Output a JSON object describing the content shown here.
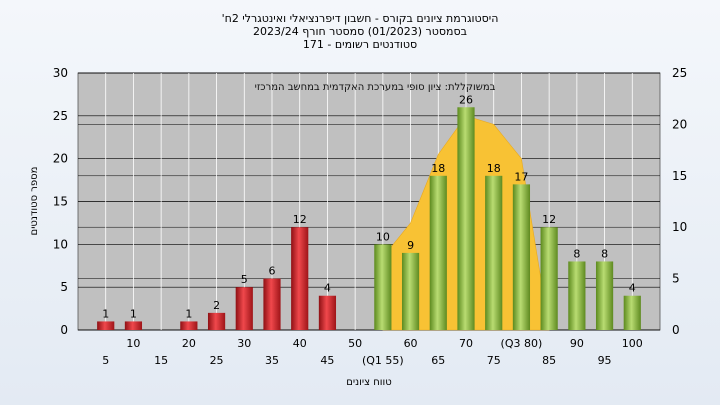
{
  "chart_data": {
    "type": "bar",
    "title": "היסטוגרמת ציונים בקורס - חשבון דיפרנציאלי ואינטגרלי 2ח'",
    "subtitle1": "בסמסטר  (01/2023)  סמסטר חורף 2023/24",
    "subtitle2": "סטודנטים רשומים - 171",
    "annotation": "במשוקללת: ציון סופי במערכת האקדמית במחשב המרכזי",
    "xlabel": "טווח ציונים",
    "ylabel": "מספר סטודנטים",
    "ylim": [
      0,
      30
    ],
    "y2lim": [
      0,
      25
    ],
    "yticks": [
      "0",
      "5",
      "10",
      "15",
      "20",
      "25",
      "30"
    ],
    "y2ticks": [
      "0",
      "5",
      "10",
      "15",
      "20",
      "25"
    ],
    "grid": true,
    "categories": [
      5,
      10,
      15,
      20,
      25,
      30,
      35,
      40,
      45,
      50,
      55,
      60,
      65,
      70,
      75,
      80,
      85,
      90,
      95,
      100
    ],
    "category_labels": [
      "5",
      "10",
      "15",
      "20",
      "25",
      "30",
      "35",
      "40",
      "45",
      "50",
      "(Q1 55)",
      "60",
      "65",
      "70",
      "75",
      "(Q3 80)",
      "85",
      "90",
      "95",
      "100"
    ],
    "series": [
      {
        "color": "#d9262b",
        "values": [
          1,
          1,
          0,
          1,
          2,
          5,
          6,
          12,
          4,
          0,
          null,
          null,
          null,
          null,
          null,
          null,
          null,
          null,
          null,
          null
        ],
        "labels": [
          "1",
          "1",
          "",
          "1",
          "2",
          "5",
          "6",
          "12",
          "4",
          "",
          "",
          "",
          "",
          "",
          "",
          "",
          "",
          "",
          "",
          ""
        ]
      },
      {
        "color": "#8dbb3e",
        "values": [
          null,
          null,
          null,
          null,
          null,
          null,
          null,
          null,
          null,
          null,
          10,
          9,
          18,
          26,
          18,
          17,
          12,
          8,
          8,
          4
        ],
        "labels": [
          "",
          "",
          "",
          "",
          "",
          "",
          "",
          "",
          "",
          "",
          "10",
          "9",
          "18",
          "26",
          "18",
          "17",
          "12",
          "8",
          "8",
          "4"
        ]
      }
    ],
    "iqr_area": {
      "color": "#f8c234",
      "x": [
        55,
        60,
        65,
        70,
        75,
        80,
        85
      ],
      "values": [
        8.5,
        12.5,
        20.5,
        25,
        24,
        20,
        0
      ]
    }
  }
}
